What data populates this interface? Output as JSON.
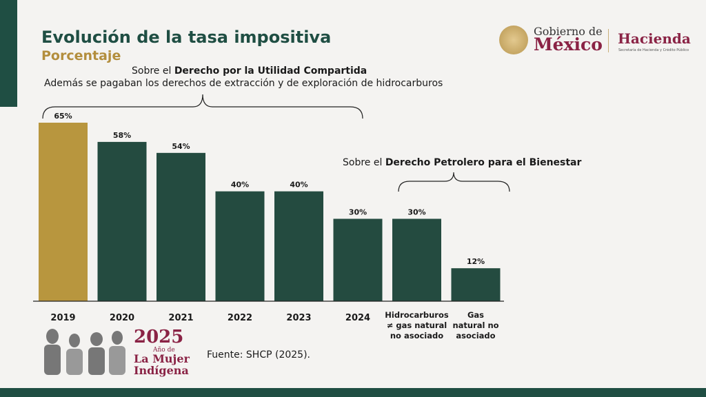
{
  "header": {
    "title": "Evolución de la tasa impositiva",
    "subtitle": "Porcentaje"
  },
  "logos": {
    "gobierno_line1": "Gobierno de",
    "gobierno_line2": "México",
    "hacienda": "Hacienda",
    "hacienda_sub": "Secretaría de Hacienda y Crédito Público",
    "mujer_year": "2025",
    "mujer_ano": "Año de",
    "mujer_line1": "La Mujer",
    "mujer_line2": "Indígena"
  },
  "annotations": {
    "duc_prefix": "Sobre el ",
    "duc_bold": "Derecho por la Utilidad Compartida",
    "duc_note": "Además se pagaban los derechos de extracción y de exploración de hidrocarburos",
    "dpb_prefix": "Sobre el ",
    "dpb_bold": "Derecho Petrolero para el Bienestar"
  },
  "source": "Fuente: SHCP (2025).",
  "colors": {
    "highlight": "#b8963e",
    "bar": "#244b40",
    "brand_green": "#1f4e43",
    "brand_red": "#8a2345"
  },
  "chart_data": {
    "type": "bar",
    "categories": [
      [
        "2019"
      ],
      [
        "2020"
      ],
      [
        "2021"
      ],
      [
        "2022"
      ],
      [
        "2023"
      ],
      [
        "2024"
      ],
      [
        "Hidrocarburos",
        "≠ gas natural",
        "no asociado"
      ],
      [
        "Gas",
        "natural no",
        "asociado"
      ]
    ],
    "values": [
      65,
      58,
      54,
      40,
      40,
      30,
      30,
      12
    ],
    "data_labels": [
      "65%",
      "58%",
      "54%",
      "40%",
      "40%",
      "30%",
      "30%",
      "12%"
    ],
    "highlight_index": 0,
    "ylim": [
      0,
      65
    ],
    "grid": false
  }
}
